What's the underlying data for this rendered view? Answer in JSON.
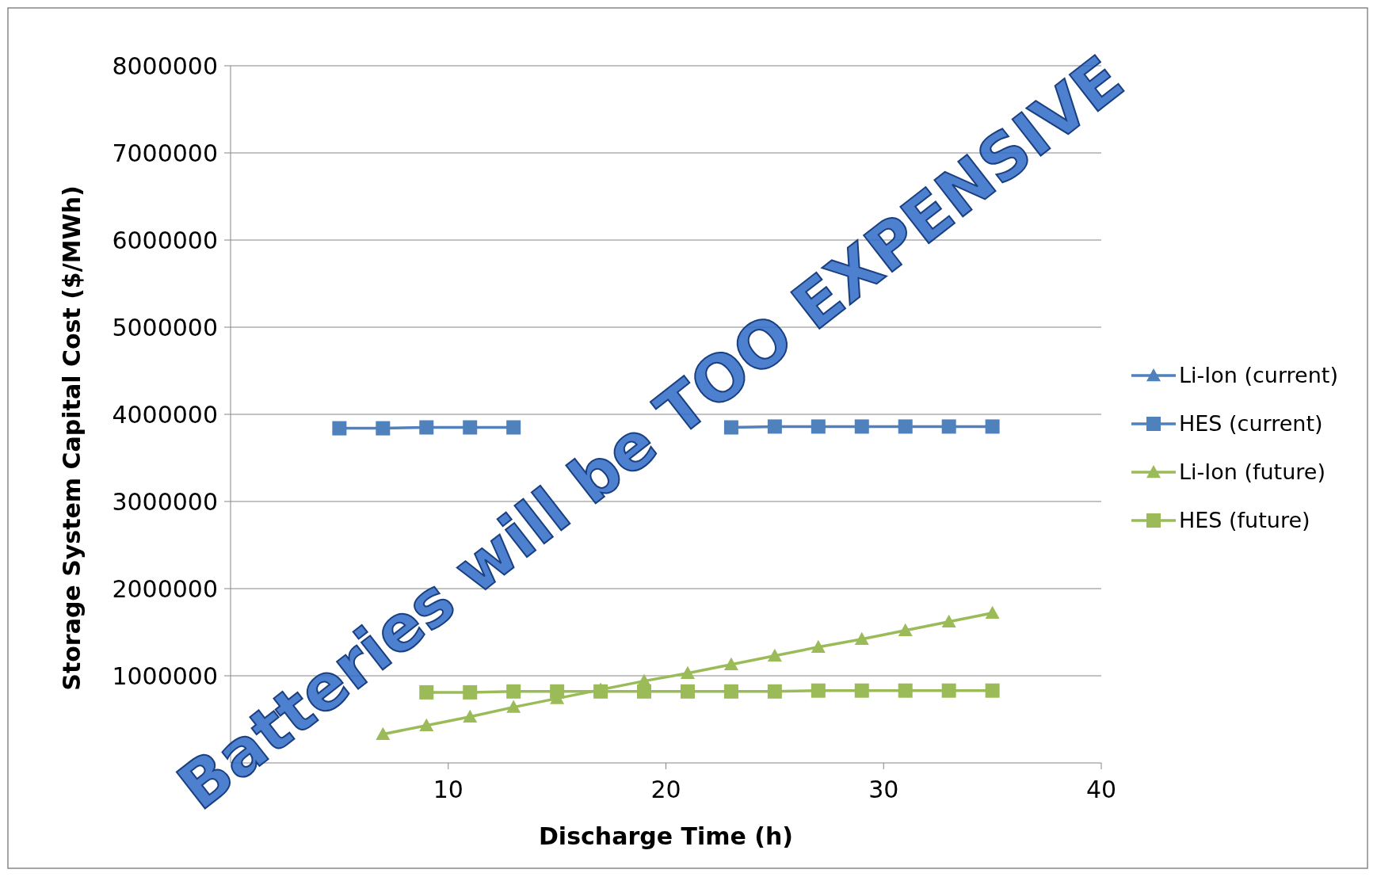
{
  "chart_data": {
    "type": "line",
    "xlabel": "Discharge Time (h)",
    "ylabel": "Storage System Capital Cost ($/MWh)",
    "x": [
      5,
      7,
      9,
      11,
      13,
      15,
      17,
      19,
      21,
      23,
      25,
      27,
      29,
      31,
      33,
      35
    ],
    "xlim": [
      0,
      40
    ],
    "xticks": [
      10,
      20,
      30,
      40
    ],
    "ylim": [
      0,
      8000000
    ],
    "yticks": [
      1000000,
      2000000,
      3000000,
      4000000,
      5000000,
      6000000,
      7000000,
      8000000
    ],
    "grid": "y",
    "legend": "right",
    "series": [
      {
        "name": "Li-Ion (current)",
        "color": "#4f81bd",
        "marker": "triangle",
        "values": [
          null,
          null,
          null,
          null,
          null,
          null,
          null,
          null,
          null,
          null,
          null,
          null,
          null,
          null,
          null,
          null
        ]
      },
      {
        "name": "HES (current)",
        "color": "#4f81bd",
        "marker": "square",
        "values": [
          3840000,
          3840000,
          3850000,
          3850000,
          3850000,
          null,
          null,
          null,
          null,
          3850000,
          3860000,
          3860000,
          3860000,
          3860000,
          3860000,
          3860000
        ]
      },
      {
        "name": "Li-Ion (future)",
        "color": "#9bbb59",
        "marker": "triangle",
        "values": [
          null,
          330000,
          430000,
          530000,
          640000,
          740000,
          840000,
          940000,
          1030000,
          1130000,
          1230000,
          1330000,
          1420000,
          1520000,
          1620000,
          1720000
        ]
      },
      {
        "name": "HES (future)",
        "color": "#9bbb59",
        "marker": "square",
        "values": [
          null,
          null,
          810000,
          810000,
          820000,
          820000,
          820000,
          820000,
          820000,
          820000,
          820000,
          830000,
          830000,
          830000,
          830000,
          830000
        ]
      }
    ],
    "annotations": [
      "Batteries will be TOO EXPENSIVE"
    ]
  }
}
